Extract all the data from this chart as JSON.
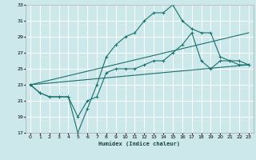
{
  "xlabel": "Humidex (Indice chaleur)",
  "bg_color": "#cce8ea",
  "grid_color": "#ffffff",
  "line_color": "#1a7070",
  "xlim": [
    -0.5,
    23.5
  ],
  "ylim": [
    17,
    33
  ],
  "yticks": [
    17,
    19,
    21,
    23,
    25,
    27,
    29,
    31,
    33
  ],
  "xticks": [
    0,
    1,
    2,
    3,
    4,
    5,
    6,
    7,
    8,
    9,
    10,
    11,
    12,
    13,
    14,
    15,
    16,
    17,
    18,
    19,
    20,
    21,
    22,
    23
  ],
  "line1_x": [
    0,
    1,
    2,
    3,
    4,
    5,
    6,
    7,
    8,
    9,
    10,
    11,
    12,
    13,
    14,
    15,
    16,
    17,
    18,
    19,
    20,
    21,
    22,
    23
  ],
  "line1_y": [
    23,
    22,
    21.5,
    21.5,
    21.5,
    17,
    20,
    23,
    26.5,
    28,
    29,
    29.5,
    31,
    32,
    32,
    33,
    31,
    30,
    29.5,
    29.5,
    26.5,
    26,
    26,
    25.5
  ],
  "line2_x": [
    0,
    1,
    2,
    3,
    4,
    5,
    6,
    7,
    8,
    9,
    10,
    11,
    12,
    13,
    14,
    15,
    16,
    17,
    18,
    19,
    20,
    21,
    22,
    23
  ],
  "line2_y": [
    23,
    22,
    21.5,
    21.5,
    21.5,
    19,
    21,
    21.5,
    24.5,
    25,
    25,
    25,
    25.5,
    26,
    26,
    27,
    28,
    29.5,
    26,
    25,
    26,
    26,
    25.5,
    25.5
  ],
  "line3_x": [
    0,
    23
  ],
  "line3_y": [
    23,
    29.5
  ],
  "line4_x": [
    0,
    23
  ],
  "line4_y": [
    23,
    25.5
  ],
  "marker": "+"
}
